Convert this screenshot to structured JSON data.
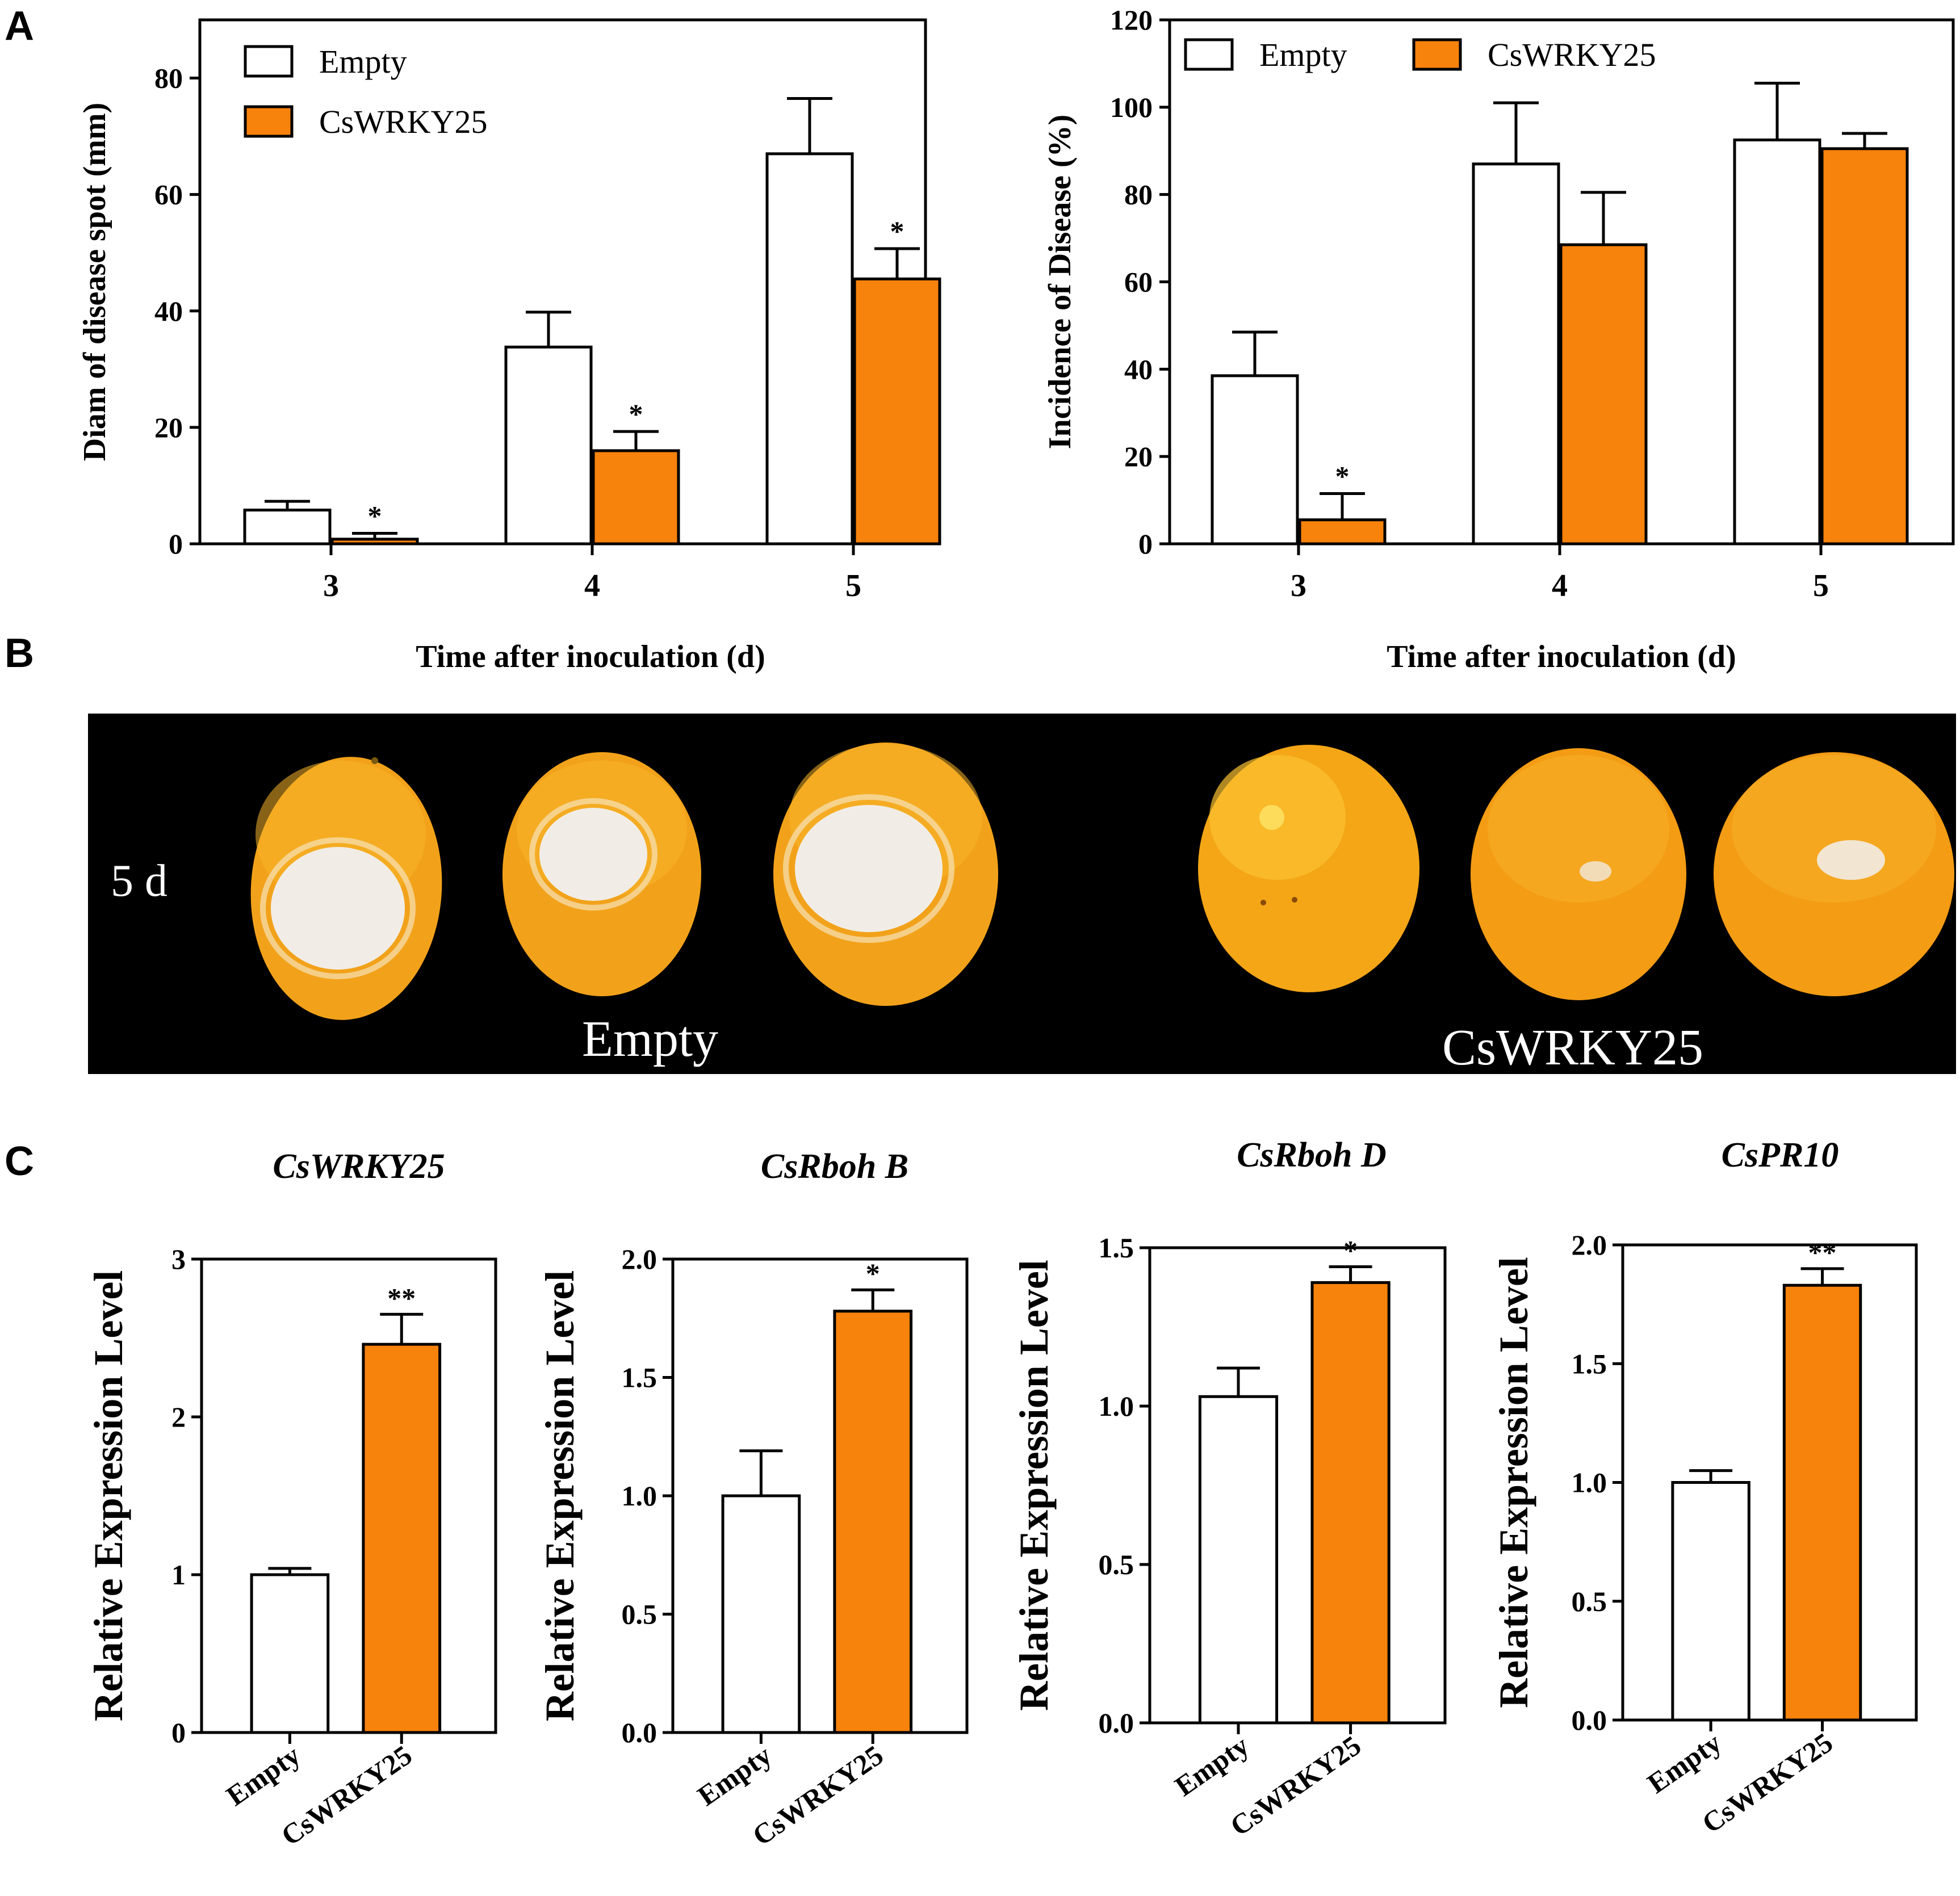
{
  "colors": {
    "empty": "#ffffff",
    "cswrky25": "#f7820c",
    "photo_bg": "#000000",
    "fruit": "#f3a018",
    "lesion": "#f2eee6"
  },
  "panels": {
    "a": "A",
    "b": "B",
    "c": "C"
  },
  "chart_data": [
    {
      "id": "a1",
      "type": "bar",
      "title": "",
      "xlabel": "Time after inoculation (d)",
      "ylabel": "Diam of disease spot  (mm)",
      "ylim": [
        0,
        90
      ],
      "yticks": [
        0,
        20,
        40,
        60,
        80
      ],
      "categories": [
        "3",
        "4",
        "5"
      ],
      "series": [
        {
          "name": "Empty",
          "values": [
            5.8,
            33.8,
            67
          ],
          "errors": [
            1.5,
            6,
            9.5
          ],
          "sig": [
            "",
            "",
            ""
          ]
        },
        {
          "name": "CsWRKY25",
          "values": [
            0.8,
            16,
            45.5
          ],
          "errors": [
            1,
            3.3,
            5.2
          ],
          "sig": [
            "*",
            "*",
            "*"
          ]
        }
      ],
      "legend": "top-left"
    },
    {
      "id": "a2",
      "type": "bar",
      "title": "",
      "xlabel": "Time after inoculation (d)",
      "ylabel": "Incidence of  Disease  (%)",
      "ylim": [
        0,
        120
      ],
      "yticks": [
        0,
        20,
        40,
        60,
        80,
        100,
        120
      ],
      "categories": [
        "3",
        "4",
        "5"
      ],
      "series": [
        {
          "name": "Empty",
          "values": [
            38.5,
            87,
            92.5
          ],
          "errors": [
            10,
            14,
            13
          ],
          "sig": [
            "",
            "",
            ""
          ]
        },
        {
          "name": "CsWRKY25",
          "values": [
            5.5,
            68.5,
            90.5
          ],
          "errors": [
            6,
            12,
            3.5
          ],
          "sig": [
            "*",
            "",
            ""
          ]
        }
      ],
      "legend": "top"
    },
    {
      "id": "c1",
      "type": "bar",
      "title": "CsWRKY25",
      "ylabel": "Relative Expression Level",
      "ylim": [
        0,
        3
      ],
      "yticks": [
        "0",
        "1",
        "2",
        "3"
      ],
      "categories": [
        "Empty",
        "CsWRKY25"
      ],
      "values": [
        1.0,
        2.46
      ],
      "errors": [
        0.04,
        0.19
      ],
      "sig": [
        "",
        "**"
      ]
    },
    {
      "id": "c2",
      "type": "bar",
      "title": "CsRboh B",
      "ylabel": "Relative Expression Level",
      "ylim": [
        0,
        2.0
      ],
      "yticks": [
        "0.0",
        "0.5",
        "1.0",
        "1.5",
        "2.0"
      ],
      "categories": [
        "Empty",
        "CsWRKY25"
      ],
      "values": [
        1.0,
        1.78
      ],
      "errors": [
        0.19,
        0.09
      ],
      "sig": [
        "",
        "*"
      ]
    },
    {
      "id": "c3",
      "type": "bar",
      "title": "CsRboh D",
      "ylabel": "Relative Expression Level",
      "ylim": [
        0,
        1.5
      ],
      "yticks": [
        "0.0",
        "0.5",
        "1.0",
        "1.5"
      ],
      "categories": [
        "Empty",
        "CsWRKY25"
      ],
      "values": [
        1.03,
        1.39
      ],
      "errors": [
        0.09,
        0.05
      ],
      "sig": [
        "",
        "*"
      ]
    },
    {
      "id": "c4",
      "type": "bar",
      "title": "CsPR10",
      "ylabel": "Relative Expression Level",
      "ylim": [
        0,
        2.0
      ],
      "yticks": [
        "0.0",
        "0.5",
        "1.0",
        "1.5",
        "2.0"
      ],
      "categories": [
        "Empty",
        "CsWRKY25"
      ],
      "values": [
        1.0,
        1.83
      ],
      "errors": [
        0.05,
        0.07
      ],
      "sig": [
        "",
        "**"
      ]
    }
  ],
  "photo": {
    "day_label": "5 d",
    "left_label": "Empty",
    "right_label": "CsWRKY25"
  }
}
